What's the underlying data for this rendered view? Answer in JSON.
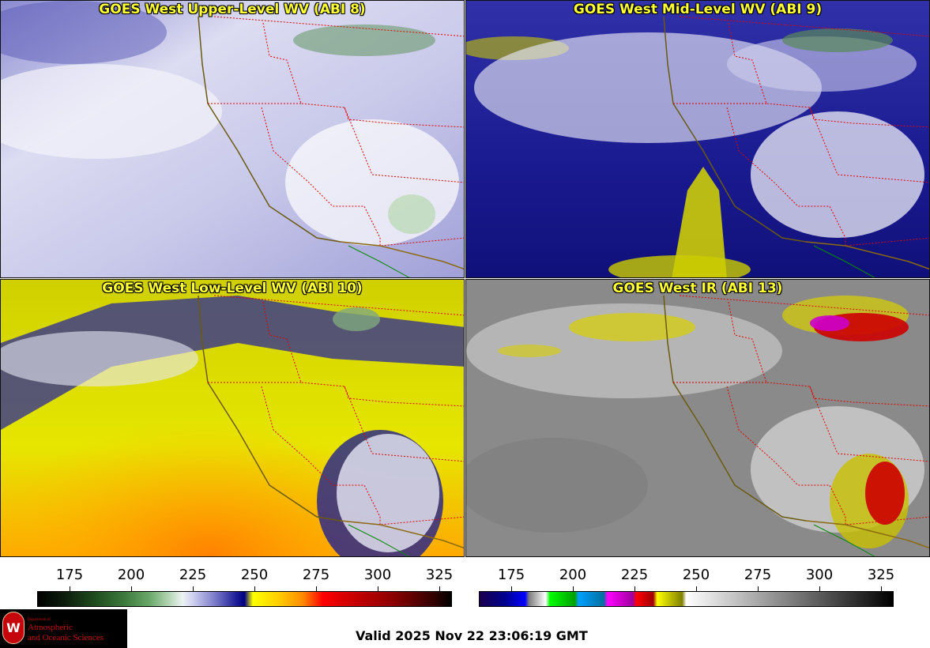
{
  "panels": [
    {
      "id": "upper",
      "title": "GOES West Upper-Level WV (ABI 8)"
    },
    {
      "id": "mid",
      "title": "GOES West Mid-Level WV (ABI 9)"
    },
    {
      "id": "low",
      "title": "GOES West Low-Level WV (ABI 10)"
    },
    {
      "id": "ir",
      "title": "GOES West IR (ABI 13)"
    }
  ],
  "colorbars": {
    "wv": {
      "ticks": [
        "175",
        "200",
        "225",
        "250",
        "275",
        "300",
        "325"
      ]
    },
    "ir": {
      "ticks": [
        "175",
        "200",
        "225",
        "250",
        "275",
        "300",
        "325"
      ]
    }
  },
  "valid_time": "Valid 2025 Nov 22 23:06:19 GMT",
  "logo": {
    "dept": "Department of",
    "line1": "Atmospheric",
    "line2": "and Oceanic Sciences",
    "crest": "W"
  }
}
